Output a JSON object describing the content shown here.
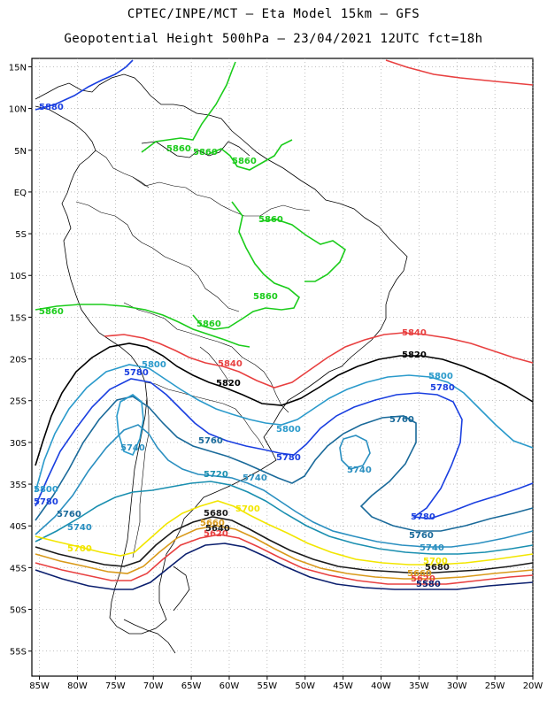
{
  "title_line1": "CPTEC/INPE/MCT –  Eta Model 15km – GFS",
  "title_line2": "Geopotential Height 500hPa – 23/04/2021 12UTC fct=18h",
  "x_ticks": [
    "85W",
    "80W",
    "75W",
    "70W",
    "65W",
    "60W",
    "55W",
    "50W",
    "45W",
    "40W",
    "35W",
    "30W",
    "25W",
    "20W"
  ],
  "y_ticks": [
    "15N",
    "10N",
    "5N",
    "EQ",
    "5S",
    "10S",
    "15S",
    "20S",
    "25S",
    "30S",
    "35S",
    "40S",
    "45S",
    "50S",
    "55S"
  ],
  "colors": {
    "c5580": "#0b1f6e",
    "c5620": "#e84040",
    "c5660": "#d99a1a",
    "c5680": "#1a1a1a",
    "c5700": "#f2e600",
    "c5720": "#1a8fb0",
    "c5740": "#2a8fc0",
    "c5760": "#1a6a9a",
    "c5780": "#1a3fe0",
    "c5800": "#2a9acb",
    "c5820": "#000000",
    "c5840": "#e84040",
    "c5860": "#1bcc1b",
    "c5880": "#1a3fe0"
  },
  "contour_labels": [
    {
      "text": "5880"
    },
    {
      "text": "5860"
    },
    {
      "text": "5860"
    },
    {
      "text": "5860"
    },
    {
      "text": "5860"
    },
    {
      "text": "5860"
    },
    {
      "text": "5860"
    },
    {
      "text": "5860"
    },
    {
      "text": "5840"
    },
    {
      "text": "5840"
    },
    {
      "text": "5820"
    },
    {
      "text": "5820"
    },
    {
      "text": "5800"
    },
    {
      "text": "5800"
    },
    {
      "text": "5800"
    },
    {
      "text": "5800"
    },
    {
      "text": "5780"
    },
    {
      "text": "5780"
    },
    {
      "text": "5780"
    },
    {
      "text": "5780"
    },
    {
      "text": "5780"
    },
    {
      "text": "5760"
    },
    {
      "text": "5760"
    },
    {
      "text": "5760"
    },
    {
      "text": "5760"
    },
    {
      "text": "5740"
    },
    {
      "text": "5740"
    },
    {
      "text": "5740"
    },
    {
      "text": "5740"
    },
    {
      "text": "5740"
    },
    {
      "text": "5720"
    },
    {
      "text": "5700"
    },
    {
      "text": "5700"
    },
    {
      "text": "5700"
    },
    {
      "text": "5680"
    },
    {
      "text": "5680"
    },
    {
      "text": "5660"
    },
    {
      "text": "5660"
    },
    {
      "text": "5620"
    },
    {
      "text": "5620"
    },
    {
      "text": "5640"
    },
    {
      "text": "5580"
    }
  ]
}
